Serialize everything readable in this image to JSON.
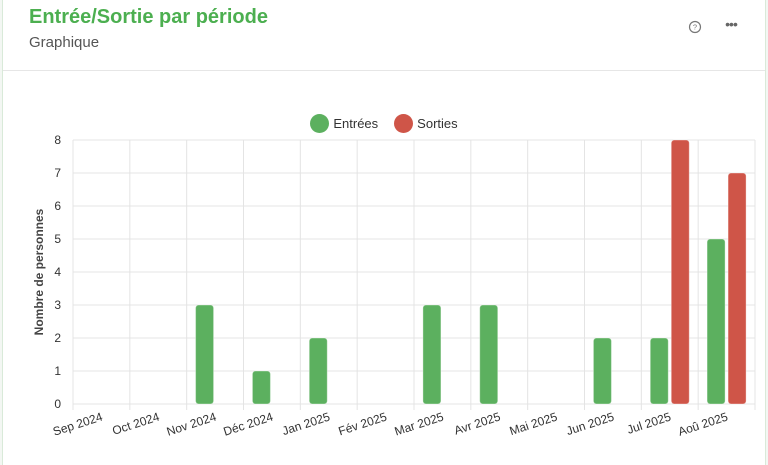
{
  "header": {
    "title": "Entrée/Sortie par période",
    "subtitle": "Graphique"
  },
  "icons": {
    "help": "help-circle-icon",
    "more": "more-horizontal-icon"
  },
  "colors": {
    "entrees": "#5cb05f",
    "sorties": "#cf5548",
    "title": "#4caf50"
  },
  "legend": {
    "entrees": "Entrées",
    "sorties": "Sorties"
  },
  "chart_data": {
    "type": "bar",
    "categories": [
      "Sep 2024",
      "Oct 2024",
      "Nov 2024",
      "Déc 2024",
      "Jan 2025",
      "Fév 2025",
      "Mar 2025",
      "Avr 2025",
      "Mai 2025",
      "Jun 2025",
      "Jul 2025",
      "Aoû 2025"
    ],
    "series": [
      {
        "name": "Entrées",
        "values": [
          0,
          0,
          3,
          1,
          2,
          0,
          3,
          3,
          0,
          2,
          2,
          5
        ]
      },
      {
        "name": "Sorties",
        "values": [
          0,
          0,
          0,
          0,
          0,
          0,
          0,
          0,
          0,
          0,
          8,
          7
        ]
      }
    ],
    "ylabel": "Nombre de personnes",
    "xlabel": "",
    "ylim": [
      0,
      8
    ],
    "yticks": [
      0,
      1,
      2,
      3,
      4,
      5,
      6,
      7,
      8
    ],
    "grid": true,
    "legend_position": "top"
  }
}
